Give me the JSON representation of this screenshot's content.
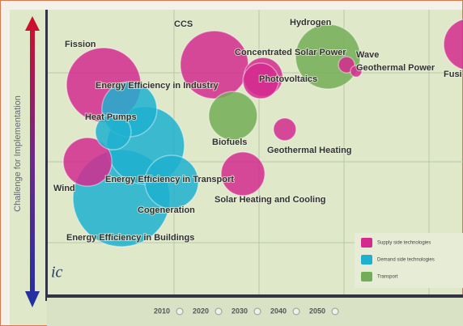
{
  "chart_data": {
    "type": "bubble",
    "y_label": "Challenge for Implementation",
    "xlim": [
      0,
      100
    ],
    "ylim": [
      0,
      100
    ],
    "series": [
      {
        "name": "Supply side technologies",
        "color": "#d42a8e",
        "labels": [
          "Fission",
          "CCS",
          "Concentrated Solar Power",
          "Wave",
          "Geothermal Power",
          "Fusi",
          "Photovoltaics",
          "Geothermal Heating",
          "Wind",
          "Solar Heating and Cooling"
        ],
        "x": [
          13.3,
          40.0,
          51.8,
          71.9,
          74.2,
          101.6,
          51.2,
          57.0,
          9.4,
          46.9
        ],
        "values": [
          74.3,
          81.4,
          77.1,
          81.4,
          79.1,
          88.6,
          75.7,
          58.6,
          47.1,
          42.9
        ],
        "sizes": [
          46,
          42,
          24,
          10,
          7,
          32,
          22,
          14,
          30,
          27
        ]
      },
      {
        "name": "Demand side technologies",
        "color": "#1fb0cf",
        "labels": [
          "Energy Efficiency in Industry",
          "Heat Pumps",
          "Cogeneration",
          "Energy Efficiency in Transport",
          "Energy Efficiency in Buildings"
        ],
        "x": [
          19.5,
          23.4,
          17.6,
          29.7,
          15.6
        ],
        "values": [
          65.7,
          52.9,
          34.3,
          40.0,
          57.7
        ],
        "sizes": [
          34,
          48,
          60,
          33,
          22
        ]
      },
      {
        "name": "Transport",
        "color": "#74ad57",
        "labels": [
          "Hydrogen",
          "Biofuels"
        ],
        "x": [
          67.4,
          44.5
        ],
        "values": [
          84.3,
          63.4
        ],
        "sizes": [
          40,
          30
        ]
      }
    ],
    "timeline": [
      "2010",
      "2020",
      "2030",
      "2040",
      "2050"
    ],
    "logo": "ic"
  }
}
